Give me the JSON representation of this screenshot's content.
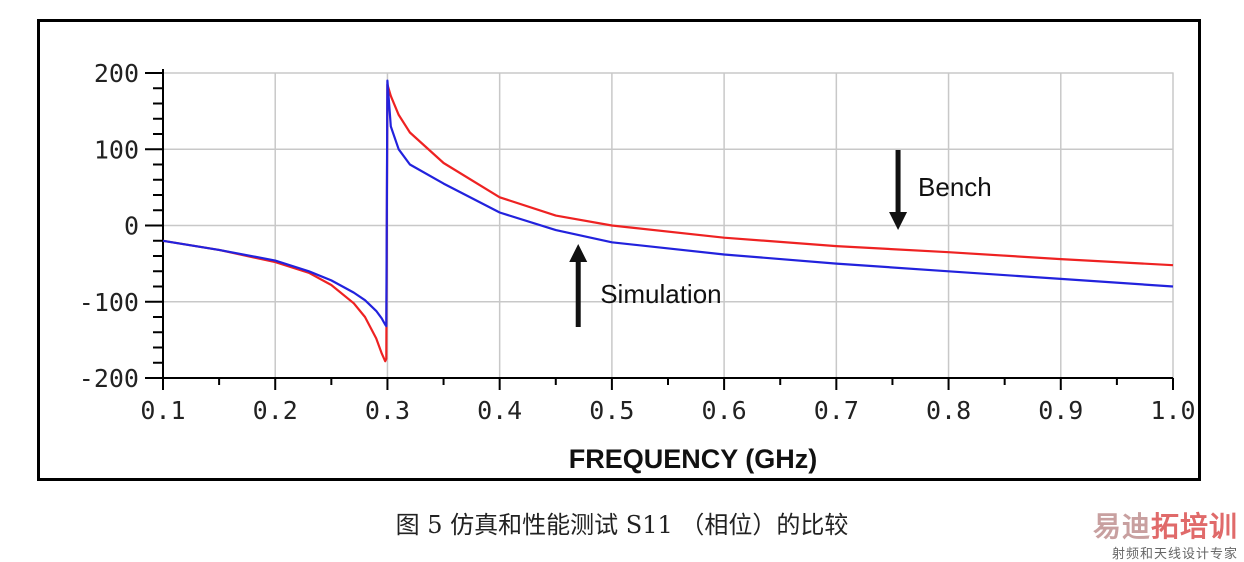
{
  "chart_data": {
    "type": "line",
    "xlabel": "FREQUENCY (GHz)",
    "ylabel": "",
    "xlim": [
      0.1,
      1.0
    ],
    "ylim": [
      -200,
      200
    ],
    "x_ticks": [
      "0.1",
      "0.2",
      "0.3",
      "0.4",
      "0.5",
      "0.6",
      "0.7",
      "0.8",
      "0.9",
      "1.0"
    ],
    "y_ticks": [
      "200",
      "100",
      "0",
      "-100",
      "-200"
    ],
    "grid": true,
    "series": [
      {
        "name": "Bench",
        "color": "#ee2222",
        "x": [
          0.1,
          0.15,
          0.2,
          0.23,
          0.25,
          0.27,
          0.28,
          0.29,
          0.295,
          0.298,
          0.299,
          0.3,
          0.303,
          0.31,
          0.32,
          0.35,
          0.4,
          0.45,
          0.5,
          0.6,
          0.7,
          0.8,
          0.9,
          1.0
        ],
        "y": [
          -20,
          -32,
          -48,
          -62,
          -78,
          -102,
          -120,
          -148,
          -168,
          -178,
          -175,
          185,
          170,
          145,
          122,
          82,
          37,
          13,
          0,
          -16,
          -27,
          -35,
          -44,
          -52
        ]
      },
      {
        "name": "Simulation",
        "color": "#2222dd",
        "x": [
          0.1,
          0.15,
          0.2,
          0.23,
          0.25,
          0.27,
          0.28,
          0.29,
          0.295,
          0.298,
          0.299,
          0.3,
          0.303,
          0.31,
          0.32,
          0.35,
          0.4,
          0.45,
          0.5,
          0.6,
          0.7,
          0.8,
          0.9,
          1.0
        ],
        "y": [
          -20,
          -32,
          -46,
          -60,
          -72,
          -88,
          -98,
          -112,
          -122,
          -130,
          -132,
          190,
          130,
          100,
          80,
          55,
          17,
          -6,
          -22,
          -38,
          -50,
          -60,
          -70,
          -80
        ]
      }
    ],
    "annotations": [
      {
        "text": "Bench",
        "arrow": "down",
        "x": 0.755
      },
      {
        "text": "Simulation",
        "arrow": "up",
        "x": 0.47
      }
    ]
  },
  "caption": "图 5  仿真和性能测试 S11 （相位）的比较",
  "watermark": {
    "main_a": "易迪",
    "main_b": "拓培训",
    "sub": "射频和天线设计专家"
  }
}
